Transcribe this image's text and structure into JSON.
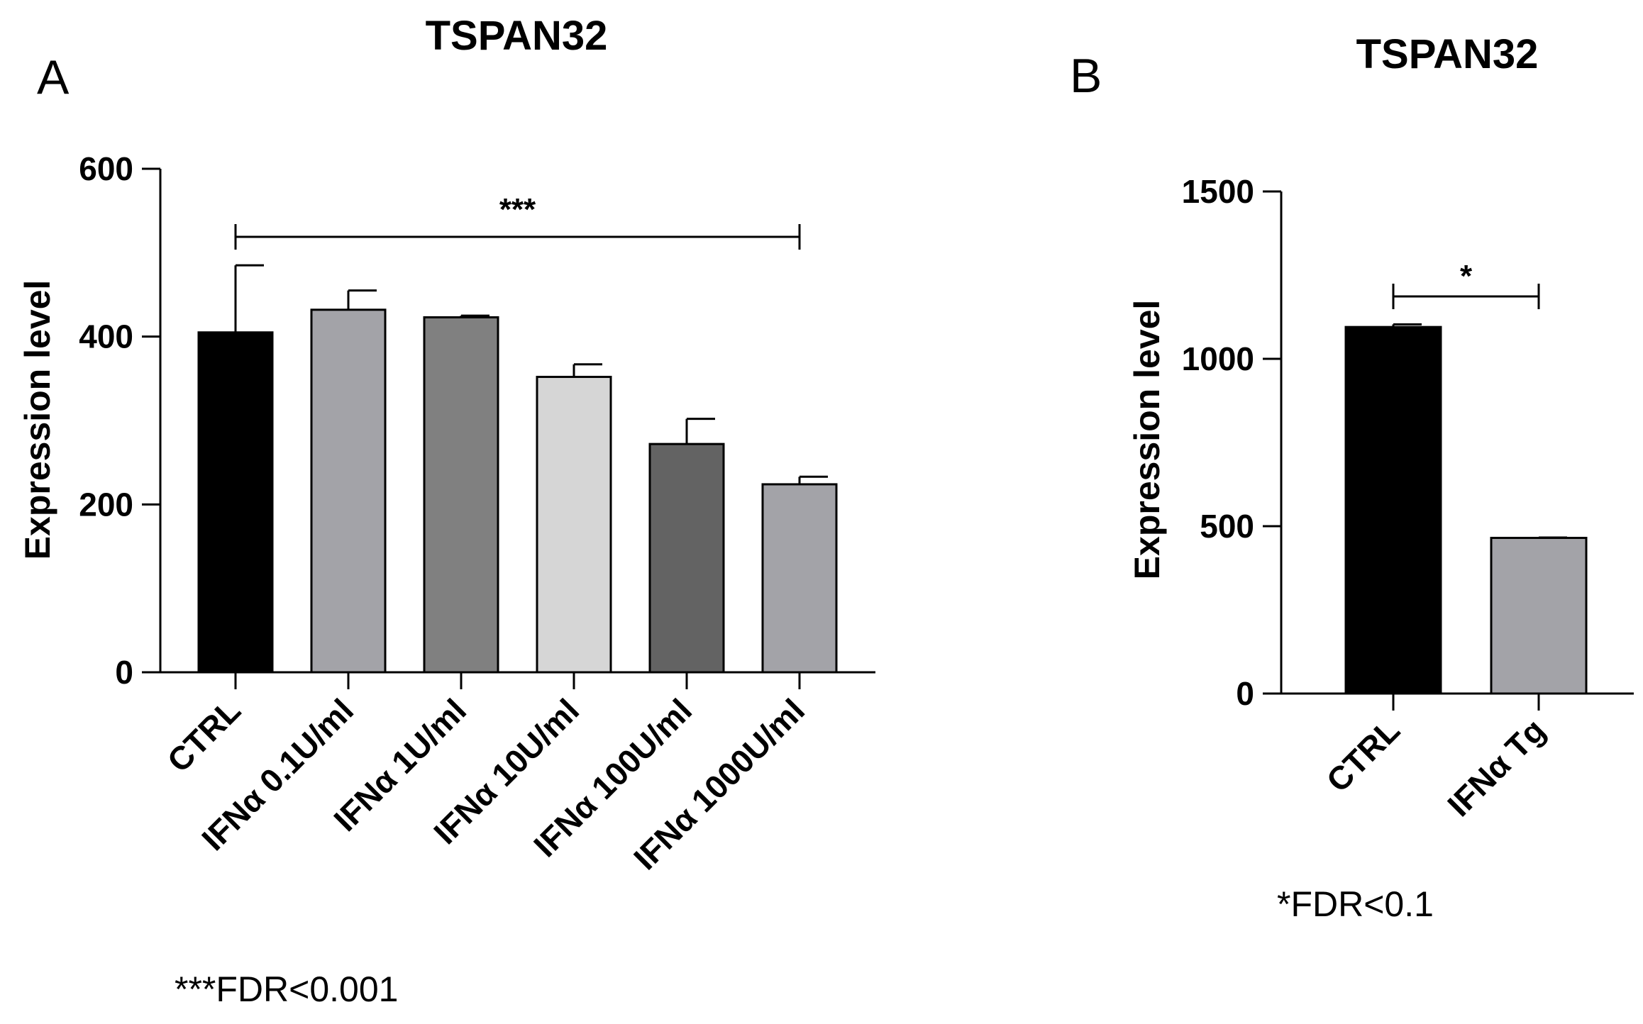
{
  "chart_data": [
    {
      "panel_label": "A",
      "type": "bar",
      "title": "TSPAN32",
      "xlabel": "",
      "ylabel": "Expression level",
      "ylim": [
        0,
        600
      ],
      "yticks": [
        "0",
        "200",
        "400",
        "600"
      ],
      "categories": [
        "CTRL",
        "IFNα 0.1U/ml",
        "IFNα 1U/ml",
        "IFNα 10U/ml",
        "IFNα 100U/ml",
        "IFNα 1000U/ml"
      ],
      "values": [
        405,
        432,
        423,
        352,
        272,
        224
      ],
      "errors": [
        80,
        23,
        2,
        15,
        30,
        9
      ],
      "bar_colors": [
        "#000000",
        "#a3a3a8",
        "#808080",
        "#d6d6d6",
        "#636363",
        "#a3a3a8"
      ],
      "significance": {
        "from": "CTRL",
        "to": "IFNα 1000U/ml",
        "label": "***"
      },
      "footnote": "***FDR<0.001"
    },
    {
      "panel_label": "B",
      "type": "bar",
      "title": "TSPAN32",
      "xlabel": "",
      "ylabel": "Expression level",
      "ylim": [
        0,
        1500
      ],
      "yticks": [
        "0",
        "500",
        "1000",
        "1500"
      ],
      "categories": [
        "CTRL",
        "IFNα Tg"
      ],
      "values": [
        1095,
        465
      ],
      "errors": [
        8,
        1
      ],
      "bar_colors": [
        "#000000",
        "#a3a3a8"
      ],
      "significance": {
        "from": "CTRL",
        "to": "IFNα Tg",
        "label": "*"
      },
      "footnote": "*FDR<0.1"
    }
  ]
}
